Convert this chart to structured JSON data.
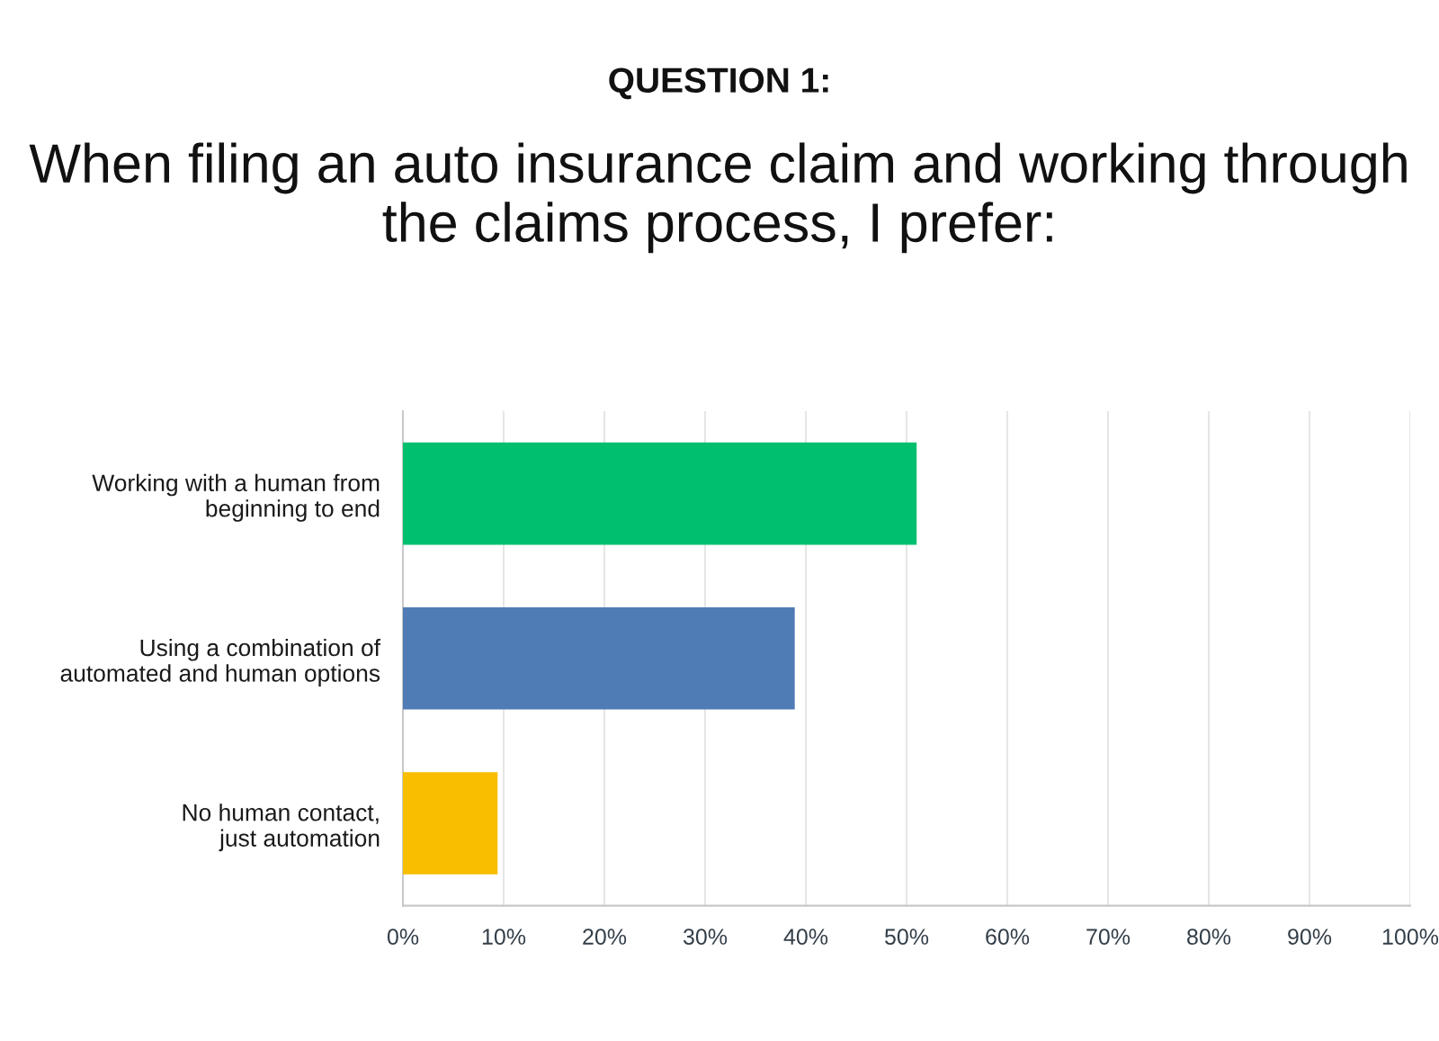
{
  "chart_data": {
    "type": "bar",
    "orientation": "horizontal",
    "title": "QUESTION 1:",
    "subtitle": "When filing an auto insurance claim and working through the claims process, I prefer:",
    "categories": [
      "Working with a human from\nbeginning to end",
      "Using a combination of\nautomated and human options",
      "No human contact,\njust automation"
    ],
    "values": [
      51,
      38.9,
      9.4
    ],
    "colors": [
      "#00bf6f",
      "#507cb6",
      "#f9be00"
    ],
    "xlim": [
      0,
      100
    ],
    "xticks": [
      {
        "value": 0,
        "label": "0%"
      },
      {
        "value": 10,
        "label": "10%"
      },
      {
        "value": 20,
        "label": "20%"
      },
      {
        "value": 30,
        "label": "30%"
      },
      {
        "value": 40,
        "label": "40%"
      },
      {
        "value": 50,
        "label": "50%"
      },
      {
        "value": 60,
        "label": "60%"
      },
      {
        "value": 70,
        "label": "70%"
      },
      {
        "value": 80,
        "label": "80%"
      },
      {
        "value": 90,
        "label": "90%"
      },
      {
        "value": 100,
        "label": "100%"
      }
    ],
    "grid": "x",
    "legend": false
  }
}
